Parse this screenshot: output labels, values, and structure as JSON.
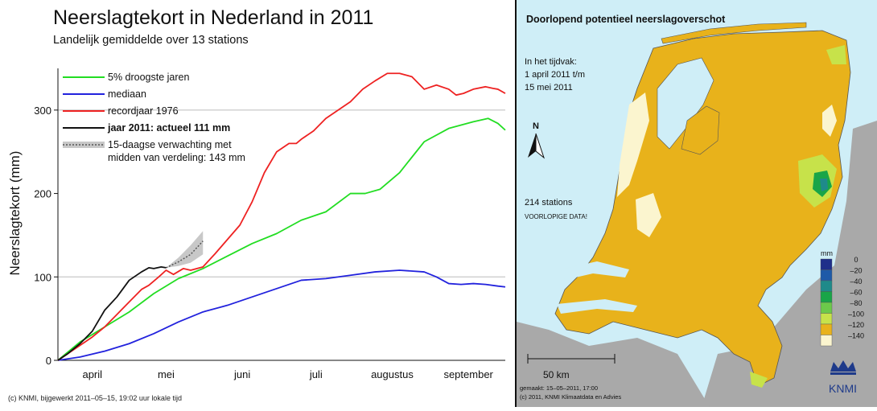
{
  "chart_data": {
    "type": "line",
    "title": "Neerslagtekort in Nederland in 2011",
    "subtitle": "Landelijk gemiddelde over 13 stations",
    "ylabel": "Neerslagtekort (mm)",
    "xlabel": "",
    "ylim": [
      0,
      350
    ],
    "xlim": [
      91,
      273
    ],
    "x_unit": "day-of-year",
    "y_ticks": [
      0,
      100,
      200,
      300
    ],
    "gridlines_y": [
      100,
      300
    ],
    "month_ticks": [
      {
        "label": "april",
        "x": 105
      },
      {
        "label": "mei",
        "x": 135
      },
      {
        "label": "juni",
        "x": 166
      },
      {
        "label": "juli",
        "x": 196
      },
      {
        "label": "augustus",
        "x": 227
      },
      {
        "label": "september",
        "x": 258
      }
    ],
    "legend": [
      {
        "label": "5% droogste jaren",
        "color": "#22dd22"
      },
      {
        "label": "mediaan",
        "color": "#2222dd"
      },
      {
        "label": "recordjaar 1976",
        "color": "#ee2222"
      },
      {
        "label": "jaar 2011: actueel 111 mm",
        "color": "#111111",
        "bold": true
      },
      {
        "label": "15-daagse verwachting met",
        "label2": "midden van verdeling: 143 mm",
        "color": "#999999"
      }
    ],
    "series": [
      {
        "name": "5% droogste jaren",
        "color": "#22dd22",
        "x": [
          91,
          100,
          110,
          120,
          130,
          140,
          150,
          160,
          170,
          180,
          190,
          196,
          200,
          210,
          216,
          222,
          230,
          240,
          250,
          260,
          266,
          270,
          273
        ],
        "y": [
          0,
          22,
          40,
          58,
          80,
          98,
          110,
          125,
          140,
          152,
          168,
          174,
          178,
          200,
          200,
          205,
          225,
          262,
          278,
          286,
          290,
          284,
          276
        ]
      },
      {
        "name": "mediaan",
        "color": "#2222dd",
        "x": [
          91,
          100,
          110,
          120,
          130,
          140,
          150,
          160,
          170,
          180,
          190,
          200,
          210,
          220,
          230,
          240,
          245,
          250,
          255,
          260,
          265,
          270,
          273
        ],
        "y": [
          0,
          4,
          11,
          20,
          32,
          46,
          58,
          66,
          76,
          86,
          96,
          98,
          102,
          106,
          108,
          106,
          100,
          92,
          91,
          92,
          91,
          89,
          88
        ]
      },
      {
        "name": "recordjaar 1976",
        "color": "#ee2222",
        "x": [
          91,
          95,
          100,
          105,
          110,
          115,
          120,
          125,
          128,
          132,
          135,
          138,
          142,
          145,
          150,
          155,
          160,
          165,
          170,
          175,
          180,
          185,
          188,
          190,
          195,
          200,
          205,
          210,
          215,
          220,
          225,
          230,
          235,
          240,
          245,
          250,
          253,
          256,
          260,
          265,
          268,
          270,
          273
        ],
        "y": [
          0,
          8,
          18,
          28,
          40,
          55,
          70,
          85,
          90,
          100,
          108,
          103,
          110,
          108,
          112,
          128,
          145,
          162,
          190,
          225,
          250,
          260,
          260,
          265,
          275,
          290,
          300,
          310,
          325,
          335,
          344,
          344,
          340,
          325,
          330,
          325,
          318,
          320,
          325,
          328,
          326,
          325,
          320
        ]
      },
      {
        "name": "jaar 2011: actueel 111 mm",
        "color": "#111111",
        "x": [
          91,
          95,
          100,
          105,
          110,
          115,
          120,
          125,
          128,
          130,
          133,
          135
        ],
        "y": [
          0,
          8,
          20,
          35,
          60,
          76,
          96,
          106,
          111,
          110,
          112,
          111
        ]
      }
    ],
    "forecast": {
      "x": [
        135,
        140,
        145,
        150
      ],
      "mid": [
        111,
        118,
        127,
        143
      ],
      "low": [
        111,
        113,
        117,
        127
      ],
      "high": [
        111,
        123,
        138,
        155
      ]
    }
  },
  "map": {
    "title": "Doorlopend potentieel neerslagoverschot",
    "period_lines": [
      "In het tijdvak:",
      "1 april 2011 t/m",
      "15 mei 2011"
    ],
    "stations": "214 stations",
    "note": "VOORLOPIGE DATA!",
    "north": "N",
    "scale": "50 km",
    "made": "gemaakt: 15–05–2011, 17:00",
    "copyright": "(c) 2011, KNMI Klimaatdata en Advies",
    "logo": "KNMI",
    "legend_unit": "mm",
    "legend": [
      {
        "label": "0",
        "color": "#1f2f8a"
      },
      {
        "label": "–20",
        "color": "#1e5aa8"
      },
      {
        "label": "–40",
        "color": "#1f8a8a"
      },
      {
        "label": "–60",
        "color": "#19a548"
      },
      {
        "label": "–80",
        "color": "#6cc94a"
      },
      {
        "label": "–100",
        "color": "#c7e24a"
      },
      {
        "label": "–120",
        "color": "#e8b21b"
      },
      {
        "label": "–140",
        "color": "#fbf5cf"
      }
    ]
  },
  "footer": "(c) KNMI, bijgewerkt 2011–05–15, 19:02 uur lokale tijd"
}
